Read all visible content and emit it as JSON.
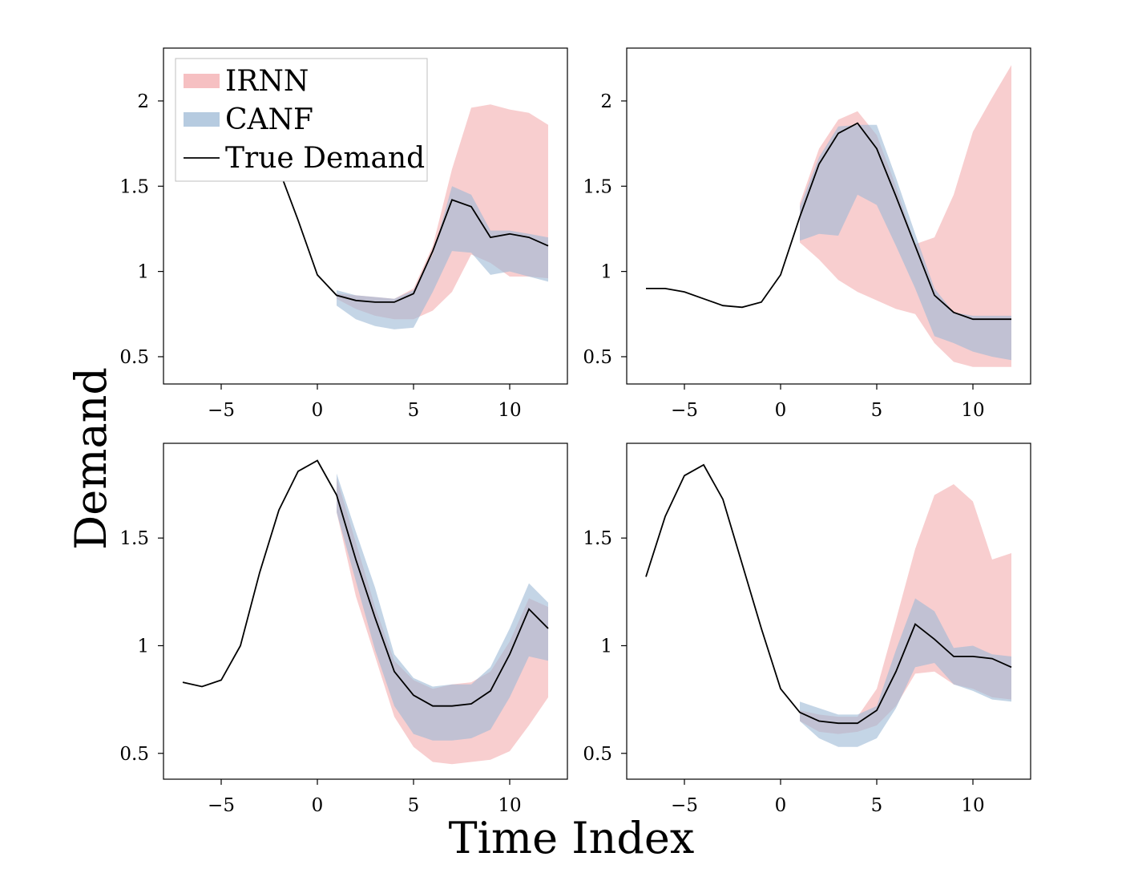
{
  "figure": {
    "xlabel": "Time Index",
    "ylabel": "Demand"
  },
  "legend": {
    "placement": "top-left",
    "entries": [
      {
        "label": "IRNN",
        "kind": "band",
        "series": "irnn"
      },
      {
        "label": "CANF",
        "kind": "band",
        "series": "canf"
      },
      {
        "label": "True Demand",
        "kind": "line",
        "series": "true"
      }
    ]
  },
  "colors": {
    "irnn": "#f2a5a8",
    "canf": "#9db9d5",
    "true": "#000000",
    "axes": "#000000"
  },
  "opacity": {
    "irnn": 0.55,
    "canf": 0.6
  },
  "chart_data": [
    {
      "type": "area",
      "has_legend": true,
      "xlim": [
        -8,
        13
      ],
      "ylim": [
        0.34,
        2.31
      ],
      "xticks": [
        -5,
        0,
        5,
        10
      ],
      "xtick_labels": [
        "−5",
        "0",
        "5",
        "10"
      ],
      "yticks": [
        0.5,
        1,
        1.5,
        2
      ],
      "ytick_labels": [
        "0.5",
        "1",
        "1.5",
        "2"
      ],
      "true_x": [
        -7,
        -6,
        -5,
        -4,
        -3,
        -2,
        -1,
        0,
        1,
        2,
        3,
        4,
        5,
        6,
        7,
        8,
        9,
        10,
        11,
        12
      ],
      "true_y": [
        2.05,
        2.03,
        2.0,
        1.93,
        1.8,
        1.6,
        1.3,
        0.98,
        0.86,
        0.83,
        0.82,
        0.82,
        0.87,
        1.12,
        1.42,
        1.38,
        1.2,
        1.22,
        1.2,
        1.15
      ],
      "band_x": [
        1,
        2,
        3,
        4,
        5,
        6,
        7,
        8,
        9,
        10,
        11,
        12
      ],
      "irnn_upper": [
        0.87,
        0.86,
        0.85,
        0.84,
        0.9,
        1.15,
        1.6,
        1.96,
        1.98,
        1.95,
        1.93,
        1.86
      ],
      "irnn_lower": [
        0.84,
        0.78,
        0.74,
        0.72,
        0.72,
        0.77,
        0.88,
        1.1,
        1.05,
        0.97,
        0.97,
        0.96
      ],
      "canf_upper": [
        0.89,
        0.86,
        0.85,
        0.84,
        0.89,
        1.1,
        1.5,
        1.45,
        1.24,
        1.24,
        1.22,
        1.2
      ],
      "canf_lower": [
        0.8,
        0.72,
        0.68,
        0.66,
        0.67,
        0.88,
        1.12,
        1.11,
        0.98,
        1.0,
        0.97,
        0.94
      ]
    },
    {
      "type": "area",
      "has_legend": false,
      "xlim": [
        -8,
        13
      ],
      "ylim": [
        0.34,
        2.31
      ],
      "xticks": [
        -5,
        0,
        5,
        10
      ],
      "xtick_labels": [
        "−5",
        "0",
        "5",
        "10"
      ],
      "yticks": [
        0.5,
        1,
        1.5,
        2
      ],
      "ytick_labels": [
        "0.5",
        "1",
        "1.5",
        "2"
      ],
      "true_x": [
        -7,
        -6,
        -5,
        -4,
        -3,
        -2,
        -1,
        0,
        1,
        2,
        3,
        4,
        5,
        6,
        7,
        8,
        9,
        10,
        11,
        12
      ],
      "true_y": [
        0.9,
        0.9,
        0.88,
        0.84,
        0.8,
        0.79,
        0.82,
        0.98,
        1.32,
        1.63,
        1.81,
        1.87,
        1.72,
        1.44,
        1.15,
        0.86,
        0.76,
        0.72,
        0.72,
        0.72
      ],
      "band_x": [
        1,
        2,
        3,
        4,
        5,
        6,
        7,
        8,
        9,
        10,
        11,
        12
      ],
      "irnn_upper": [
        1.4,
        1.72,
        1.89,
        1.94,
        1.8,
        1.5,
        1.16,
        1.2,
        1.45,
        1.82,
        2.02,
        2.21
      ],
      "irnn_lower": [
        1.17,
        1.07,
        0.95,
        0.88,
        0.83,
        0.78,
        0.75,
        0.58,
        0.47,
        0.44,
        0.44,
        0.44
      ],
      "canf_upper": [
        1.38,
        1.67,
        1.85,
        1.86,
        1.86,
        1.55,
        1.22,
        0.9,
        0.76,
        0.74,
        0.74,
        0.74
      ],
      "canf_lower": [
        1.18,
        1.22,
        1.21,
        1.45,
        1.39,
        1.15,
        0.9,
        0.62,
        0.58,
        0.53,
        0.5,
        0.48
      ]
    },
    {
      "type": "area",
      "has_legend": false,
      "xlim": [
        -8,
        13
      ],
      "ylim": [
        0.38,
        1.94
      ],
      "xticks": [
        -5,
        0,
        5,
        10
      ],
      "xtick_labels": [
        "−5",
        "0",
        "5",
        "10"
      ],
      "yticks": [
        0.5,
        1,
        1.5
      ],
      "ytick_labels": [
        "0.5",
        "1",
        "1.5"
      ],
      "true_x": [
        -7,
        -6,
        -5,
        -4,
        -3,
        -2,
        -1,
        0,
        1,
        2,
        3,
        4,
        5,
        6,
        7,
        8,
        9,
        10,
        11,
        12
      ],
      "true_y": [
        0.83,
        0.81,
        0.84,
        1.0,
        1.34,
        1.63,
        1.81,
        1.86,
        1.7,
        1.4,
        1.13,
        0.88,
        0.77,
        0.72,
        0.72,
        0.73,
        0.79,
        0.96,
        1.17,
        1.08
      ],
      "band_x": [
        1,
        2,
        3,
        4,
        5,
        6,
        7,
        8,
        9,
        10,
        11,
        12
      ],
      "irnn_upper": [
        1.78,
        1.48,
        1.18,
        0.93,
        0.84,
        0.8,
        0.82,
        0.83,
        0.88,
        1.02,
        1.22,
        1.18
      ],
      "irnn_lower": [
        1.62,
        1.23,
        0.95,
        0.67,
        0.53,
        0.46,
        0.45,
        0.46,
        0.47,
        0.51,
        0.63,
        0.76
      ],
      "canf_upper": [
        1.8,
        1.53,
        1.27,
        0.96,
        0.85,
        0.81,
        0.82,
        0.82,
        0.9,
        1.08,
        1.29,
        1.2
      ],
      "canf_lower": [
        1.62,
        1.3,
        0.98,
        0.72,
        0.59,
        0.56,
        0.56,
        0.57,
        0.61,
        0.76,
        0.95,
        0.93
      ]
    },
    {
      "type": "area",
      "has_legend": false,
      "xlim": [
        -8,
        13
      ],
      "ylim": [
        0.38,
        1.94
      ],
      "xticks": [
        -5,
        0,
        5,
        10
      ],
      "xtick_labels": [
        "−5",
        "0",
        "5",
        "10"
      ],
      "yticks": [
        0.5,
        1,
        1.5
      ],
      "ytick_labels": [
        "0.5",
        "1",
        "1.5"
      ],
      "true_x": [
        -7,
        -6,
        -5,
        -4,
        -3,
        -2,
        -1,
        0,
        1,
        2,
        3,
        4,
        5,
        6,
        7,
        8,
        9,
        10,
        11,
        12
      ],
      "true_y": [
        1.32,
        1.6,
        1.79,
        1.84,
        1.68,
        1.38,
        1.08,
        0.8,
        0.69,
        0.65,
        0.64,
        0.64,
        0.7,
        0.88,
        1.1,
        1.03,
        0.95,
        0.95,
        0.94,
        0.9
      ],
      "band_x": [
        1,
        2,
        3,
        4,
        5,
        6,
        7,
        8,
        9,
        10,
        11,
        12
      ],
      "irnn_upper": [
        0.7,
        0.68,
        0.67,
        0.67,
        0.8,
        1.12,
        1.45,
        1.7,
        1.75,
        1.67,
        1.4,
        1.43
      ],
      "irnn_lower": [
        0.65,
        0.6,
        0.59,
        0.6,
        0.63,
        0.72,
        0.87,
        0.88,
        0.82,
        0.8,
        0.76,
        0.75
      ],
      "canf_upper": [
        0.74,
        0.71,
        0.68,
        0.68,
        0.72,
        0.98,
        1.22,
        1.16,
        0.99,
        1.0,
        0.96,
        0.95
      ],
      "canf_lower": [
        0.65,
        0.57,
        0.53,
        0.53,
        0.57,
        0.71,
        0.9,
        0.92,
        0.82,
        0.79,
        0.75,
        0.74
      ]
    }
  ]
}
